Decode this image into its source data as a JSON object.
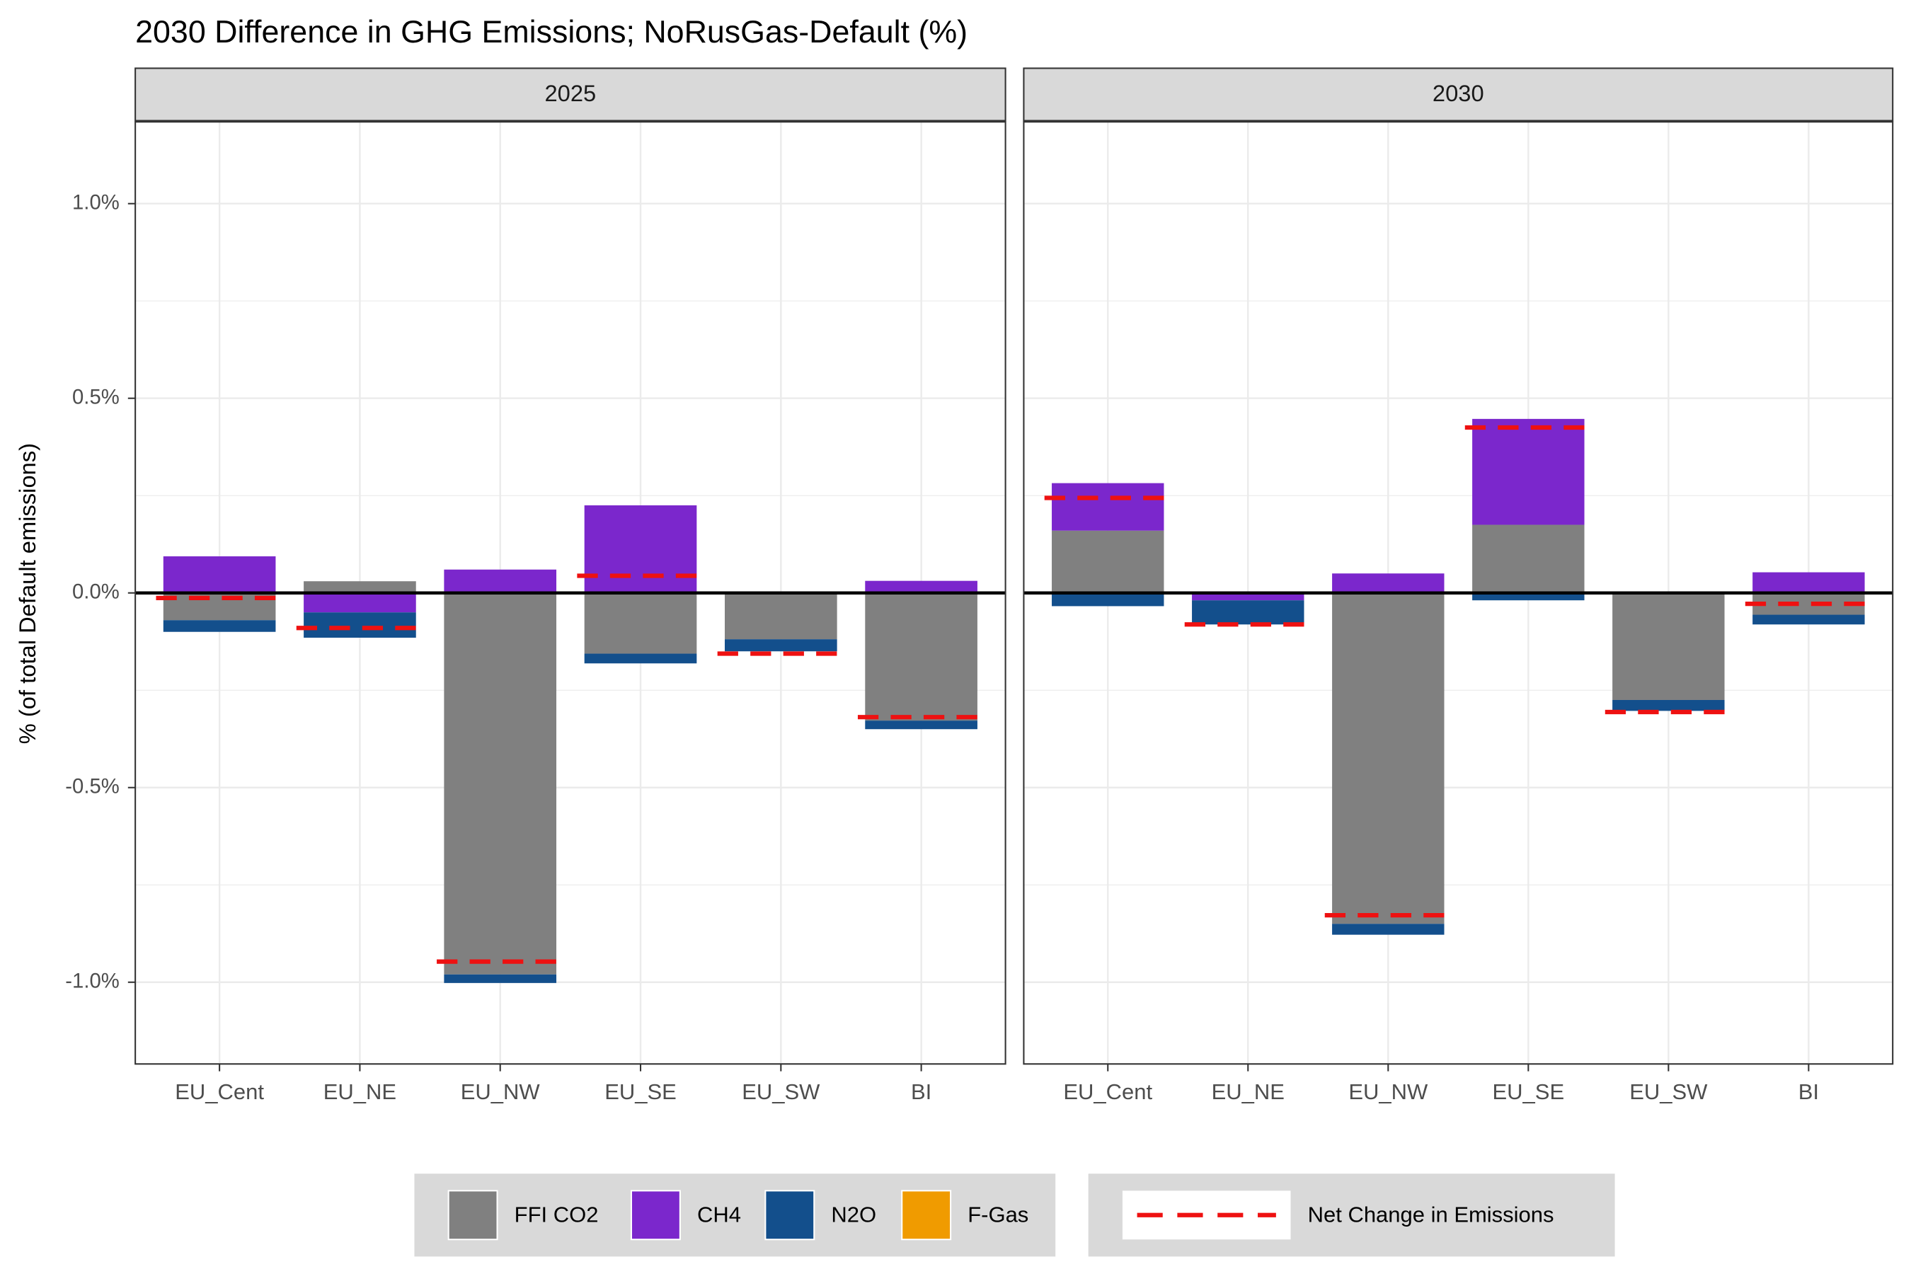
{
  "chart_data": {
    "type": "bar",
    "stacked": true,
    "title": "2030 Difference in GHG Emissions; NoRusGas-Default (%)",
    "y_label": "% (of total Default emissions)",
    "facets": [
      "2025",
      "2030"
    ],
    "categories": [
      "EU_Cent",
      "EU_NE",
      "EU_NW",
      "EU_SE",
      "EU_SW",
      "BI"
    ],
    "series": [
      {
        "name": "FFI CO2",
        "color": "#808080",
        "values": [
          [
            -0.07,
            0.03,
            -0.98,
            -0.156,
            -0.119,
            -0.328
          ],
          [
            0.16,
            0,
            -0.85,
            0.175,
            -0.275,
            -0.056
          ]
        ]
      },
      {
        "name": "CH4",
        "color": "#7b27cc",
        "values": [
          [
            0.094,
            -0.05,
            0.06,
            0.225,
            0,
            0.031
          ],
          [
            0.122,
            -0.019,
            0.05,
            0.272,
            0,
            0.053
          ]
        ]
      },
      {
        "name": "N2O",
        "color": "#134f8c",
        "values": [
          [
            -0.03,
            -0.065,
            -0.022,
            -0.025,
            -0.031,
            -0.022
          ],
          [
            -0.034,
            -0.062,
            -0.028,
            -0.019,
            -0.028,
            -0.025
          ]
        ]
      },
      {
        "name": "F-Gas",
        "color": "#f09b00",
        "values": [
          [
            0,
            0,
            0,
            0,
            0,
            0
          ],
          [
            0,
            0,
            0,
            0,
            0,
            0
          ]
        ]
      }
    ],
    "net_change": {
      "name": "Net Change in Emissions",
      "color": "#ee1111",
      "values": [
        [
          -0.013,
          -0.09,
          -0.947,
          0.044,
          -0.156,
          -0.319
        ],
        [
          0.244,
          -0.081,
          -0.828,
          0.425,
          -0.306,
          -0.028
        ]
      ]
    },
    "ylim": [
      -1.21,
      1.21
    ],
    "yticks": [
      {
        "value": -1,
        "label": "-1.0%"
      },
      {
        "value": -0.5,
        "label": "-0.5%"
      },
      {
        "value": 0,
        "label": "0.0%"
      },
      {
        "value": 0.5,
        "label": "0.5%"
      },
      {
        "value": 1,
        "label": "1.0%"
      }
    ],
    "minor_yticks": [
      -0.75,
      -0.25,
      0.25,
      0.75
    ],
    "grid": true,
    "legend": "bottom"
  }
}
